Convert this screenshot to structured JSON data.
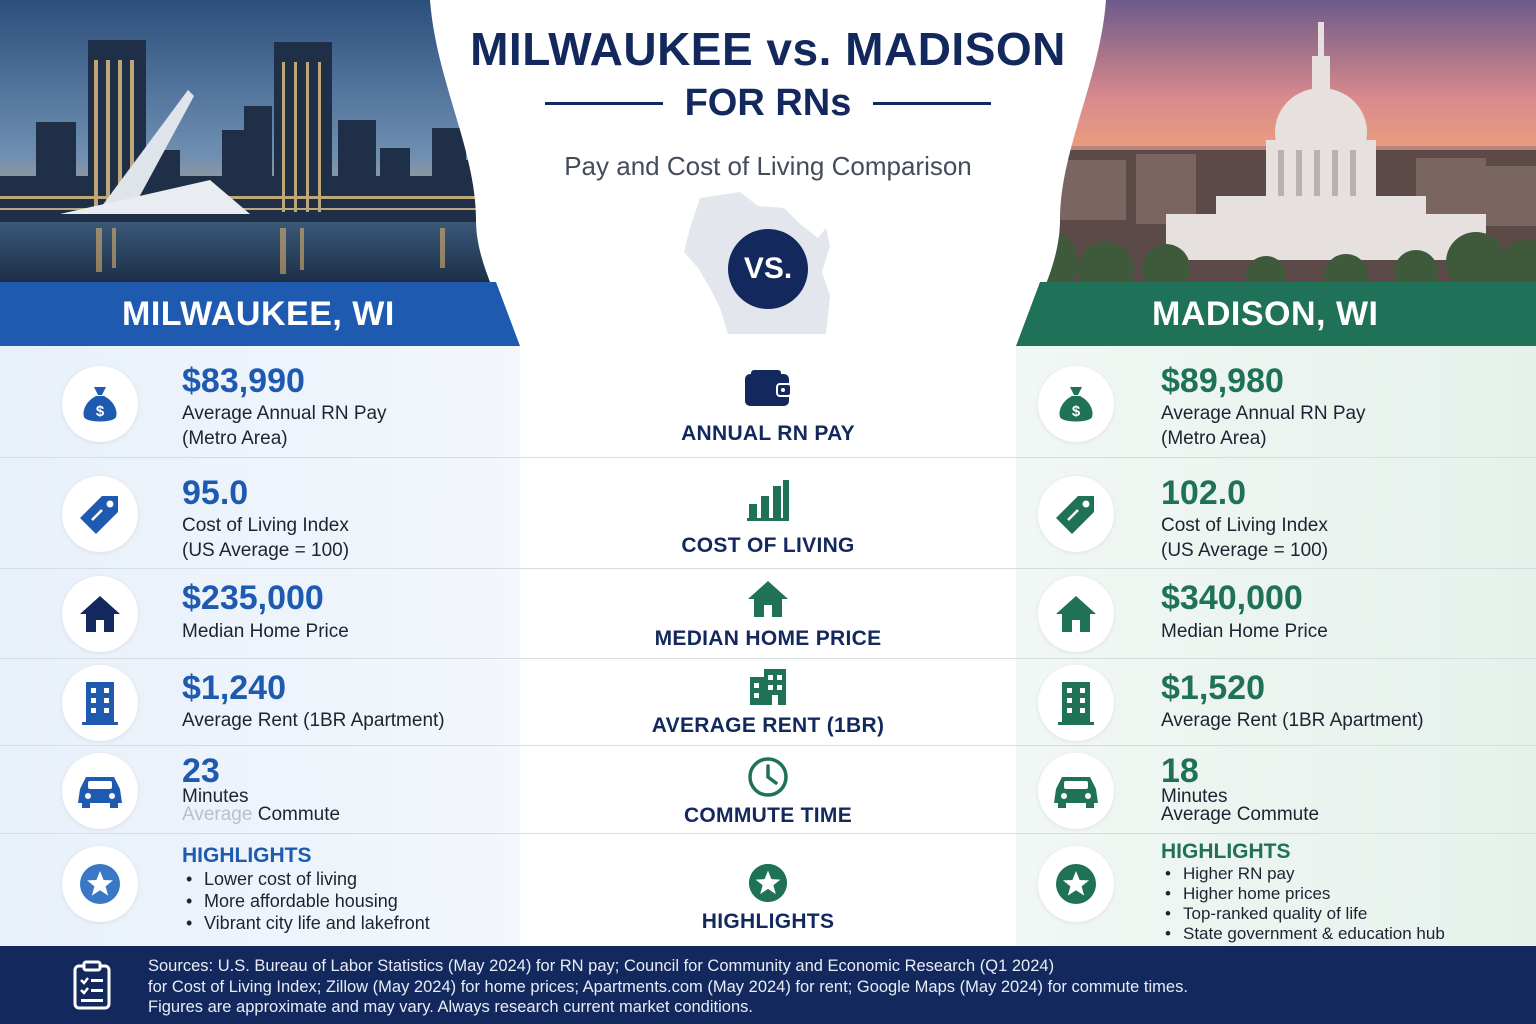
{
  "header": {
    "title_line1": "MILWAUKEE vs. MADISON",
    "title_line2": "FOR RNs",
    "subtitle": "Pay and Cost of Living Comparison",
    "vs_badge": "VS."
  },
  "cities": {
    "left": {
      "name": "MILWAUKEE, WI",
      "accent": "#1e5bb0"
    },
    "right": {
      "name": "MADISON, WI",
      "accent": "#1f7258"
    }
  },
  "rows": {
    "pay": {
      "label": "ANNUAL RN PAY",
      "icon": "wallet-icon",
      "left": {
        "value": "$83,990",
        "desc1": "Average Annual RN Pay",
        "desc2": "(Metro Area)"
      },
      "right": {
        "value": "$89,980",
        "desc1": "Average Annual RN Pay",
        "desc2": "(Metro Area)"
      }
    },
    "cost": {
      "label": "COST OF LIVING",
      "icon": "bar-chart-icon",
      "left": {
        "value": "95.0",
        "desc1": "Cost of Living Index",
        "desc2": "(US Average = 100)"
      },
      "right": {
        "value": "102.0",
        "desc1": "Cost of Living Index",
        "desc2": "(US Average = 100)"
      }
    },
    "home": {
      "label": "MEDIAN HOME PRICE",
      "icon": "house-icon",
      "left": {
        "value": "$235,000",
        "desc1": "Median Home Price"
      },
      "right": {
        "value": "$340,000",
        "desc1": "Median Home Price"
      }
    },
    "rent": {
      "label": "AVERAGE RENT (1BR)",
      "icon": "building-icon",
      "left": {
        "value": "$1,240",
        "desc1": "Average Rent (1BR Apartment)"
      },
      "right": {
        "value": "$1,520",
        "desc1": "Average Rent (1BR Apartment)"
      }
    },
    "commute": {
      "label": "COMMUTE TIME",
      "icon": "clock-icon",
      "left": {
        "value": "23",
        "desc1": "Minutes",
        "desc2a": "Average",
        "desc2b": " Commute"
      },
      "right": {
        "value": "18",
        "desc1": "Minutes",
        "desc2": "Average Commute"
      }
    },
    "highlights": {
      "label": "HIGHLIGHTS",
      "icon": "star-icon",
      "left": {
        "title": "HIGHLIGHTS",
        "items": [
          "Lower cost of living",
          "More affordable housing",
          "Vibrant city life and lakefront"
        ]
      },
      "right": {
        "title": "HIGHLIGHTS",
        "items": [
          "Higher RN pay",
          "Higher home prices",
          "Top-ranked quality of life",
          "State government & education hub"
        ]
      }
    }
  },
  "footer": {
    "icon": "clipboard-icon",
    "line1": "Sources: U.S. Bureau of Labor Statistics (May 2024) for RN pay; Council for Community and Economic Research (Q1 2024)",
    "line2": "for Cost of Living Index; Zillow (May 2024) for home prices; Apartments.com (May 2024) for rent; Google Maps (May 2024) for commute times.",
    "line3": "Figures are approximate and may vary. Always research current market conditions."
  }
}
